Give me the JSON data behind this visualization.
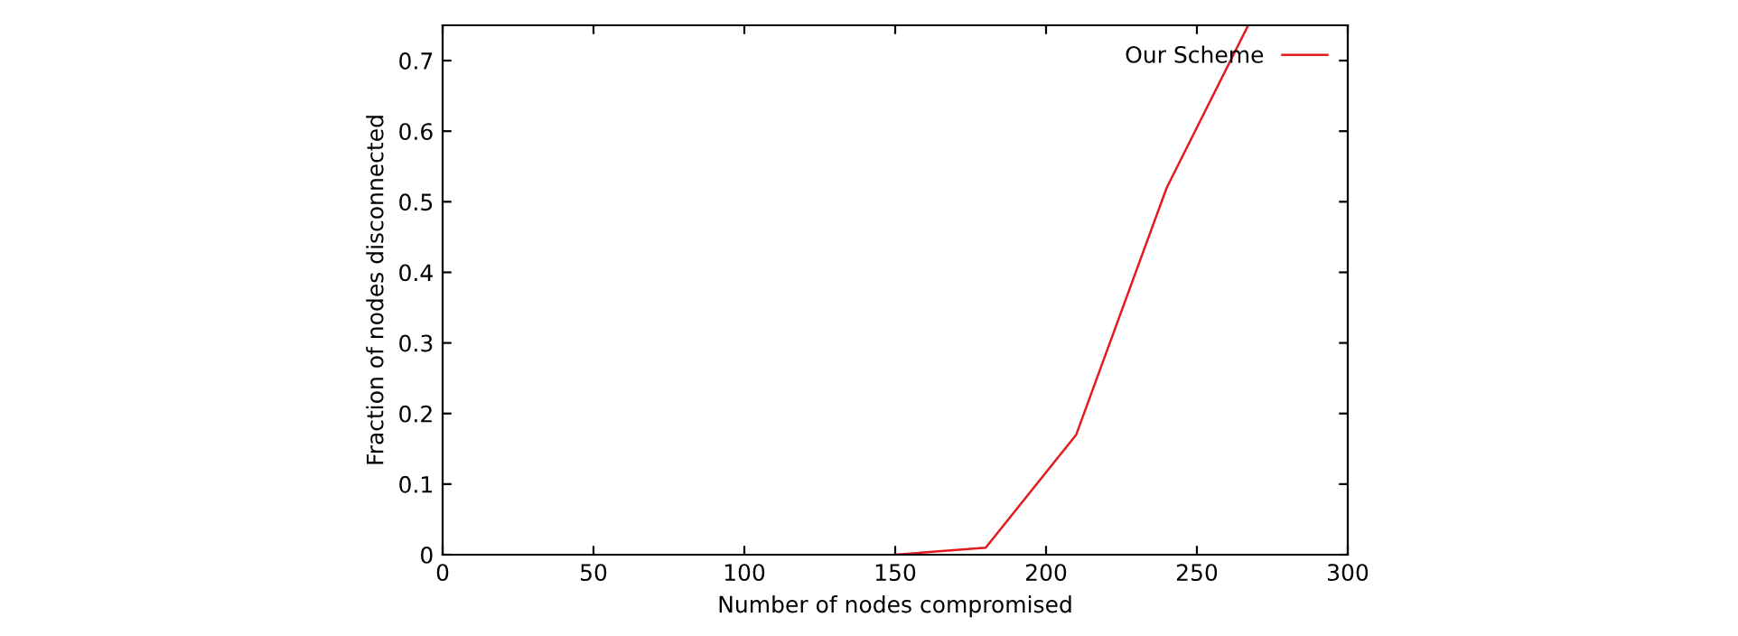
{
  "chart_data": {
    "type": "line",
    "xlabel": "Number of nodes compromised",
    "ylabel": "Fraction of nodes disconnected",
    "x": [
      150,
      180,
      210,
      240,
      267
    ],
    "series": [
      {
        "name": "Our Scheme",
        "color": "#e41a1c",
        "values": [
          0,
          0.01,
          0.17,
          0.52,
          0.75
        ]
      }
    ],
    "xlim": [
      0,
      300
    ],
    "xticks": [
      0,
      50,
      100,
      150,
      200,
      250,
      300
    ],
    "ylim": [
      0,
      0.75
    ],
    "yticks": [
      0,
      0.1,
      0.2,
      0.3,
      0.4,
      0.5,
      0.6,
      0.7
    ],
    "legend": "top right",
    "grid": false
  }
}
